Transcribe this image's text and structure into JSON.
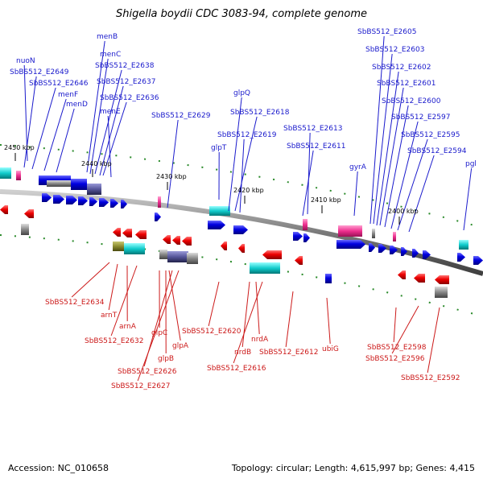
{
  "title": "Shigella boydii CDC 3083-94, complete genome",
  "accession": "Accession: NC_010658",
  "summary": "Topology: circular; Length: 4,615,997 bp; Genes: 4,415",
  "colors": {
    "forward": "#0000cc",
    "reverse": "#cc0000",
    "backbone": "#7a7a7a",
    "tick": "#2a8a2a"
  },
  "ticks": [
    "2450 kbp",
    "2440 kbp",
    "2430 kbp",
    "2420 kbp",
    "2410 kbp",
    "2400 kbp"
  ],
  "forward_labels": [
    "nuoN",
    "SbBS512_E2649",
    "SbBS512_E2646",
    "menF",
    "menD",
    "menB",
    "menC",
    "SbBS512_E2638",
    "SbBS512_E2637",
    "SbBS512_E2636",
    "menE",
    "SbBS512_E2629",
    "glpQ",
    "SbBS512_E2618",
    "SbBS512_E2619",
    "glpT",
    "SbBS512_E2613",
    "SbBS512_E2611",
    "SbBS512_E2605",
    "SbBS512_E2603",
    "SbBS512_E2602",
    "SbBS512_E2601",
    "SbBS512_E2600",
    "SbBS512_E2597",
    "SbBS512_E2595",
    "SbBS512_E2594",
    "gyrA",
    "pgl"
  ],
  "reverse_labels": [
    "SbBS512_E2634",
    "arnT",
    "arnA",
    "SbBS512_E2632",
    "glpC",
    "glpA",
    "glpB",
    "SbBS512_E2626",
    "SbBS512_E2627",
    "SbBS512_E2620",
    "nrdA",
    "nrdB",
    "SbBS512_E2616",
    "SbBS512_E2612",
    "ubiG",
    "SbBS512_E2598",
    "SbBS512_E2596",
    "SbBS512_E2592"
  ]
}
